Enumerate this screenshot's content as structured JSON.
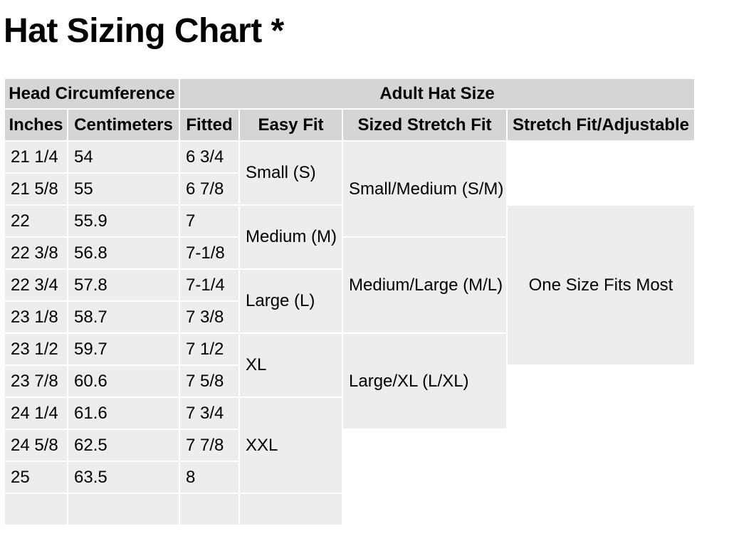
{
  "page": {
    "title": "Hat Sizing Chart *"
  },
  "colors": {
    "page_bg": "#ffffff",
    "header_bg": "#d5d5d5",
    "cell_bg": "#ededed",
    "divider": "#ffffff",
    "text": "#000000"
  },
  "table": {
    "header_groups": [
      {
        "label": "Head Circumference",
        "colspan": 2
      },
      {
        "label": "Adult Hat Size",
        "colspan": 4
      }
    ],
    "columns": [
      "Inches",
      "Centimeters",
      "Fitted",
      "Easy Fit",
      "Sized Stretch Fit",
      "Stretch Fit/Adjustable"
    ],
    "rows": [
      {
        "inches": "21 1/4",
        "cm": "54",
        "fitted": "6 3/4"
      },
      {
        "inches": "21 5/8",
        "cm": "55",
        "fitted": "6 7/8"
      },
      {
        "inches": "22",
        "cm": "55.9",
        "fitted": "7"
      },
      {
        "inches": "22 3/8",
        "cm": "56.8",
        "fitted": "7-1/8"
      },
      {
        "inches": "22 3/4",
        "cm": "57.8",
        "fitted": "7-1/4"
      },
      {
        "inches": "23 1/8",
        "cm": "58.7",
        "fitted": "7 3/8"
      },
      {
        "inches": "23 1/2",
        "cm": "59.7",
        "fitted": "7 1/2"
      },
      {
        "inches": "23 7/8",
        "cm": "60.6",
        "fitted": "7 5/8"
      },
      {
        "inches": "24 1/4",
        "cm": "61.6",
        "fitted": "7 3/4"
      },
      {
        "inches": "24 5/8",
        "cm": "62.5",
        "fitted": "7 7/8"
      },
      {
        "inches": "25",
        "cm": "63.5",
        "fitted": "8"
      },
      {
        "inches": "",
        "cm": "",
        "fitted": ""
      }
    ],
    "easy_fit": {
      "small": "Small (S)",
      "medium": "Medium (M)",
      "large": "Large (L)",
      "xl": "XL",
      "xxl": "XXL"
    },
    "sized_stretch": {
      "sm": "Small/Medium (S/M)",
      "ml": "Medium/Large (M/L)",
      "lxl": "Large/XL (L/XL)"
    },
    "adjustable": {
      "one_size": "One Size Fits Most"
    }
  }
}
